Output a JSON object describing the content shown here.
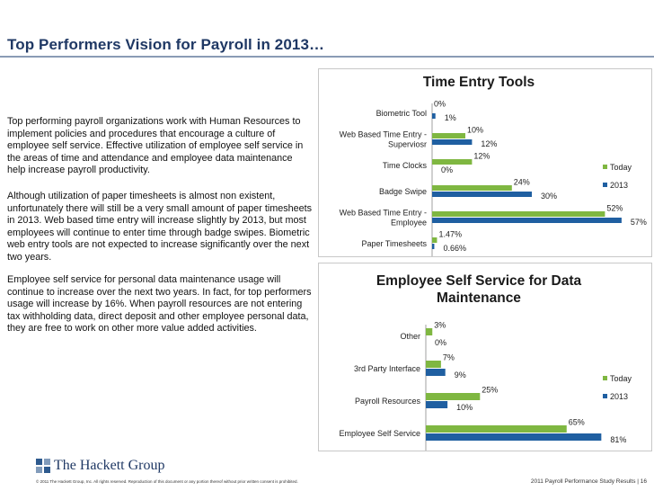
{
  "page": {
    "title": "Top Performers Vision for Payroll in 2013…",
    "paragraphs": [
      "Top performing payroll organizations work with Human Resources to implement policies and procedures that encourage a culture of employee self service.  Effective utilization of employee self service in the areas of time and attendance and employee data maintenance help increase payroll productivity.",
      "Although utilization of paper timesheets is almost non existent, unfortunately there will still be a very small amount of paper timesheets in 2013.  Web based time entry will increase slightly by 2013, but most employees will continue to enter time through badge swipes.  Biometric web entry tools are not expected to increase significantly over the next two years.",
      "Employee self service for personal data maintenance usage will continue to increase over the next two years.  In fact, for top performers usage will increase by 16%.  When payroll resources are not entering tax withholding data, direct deposit and other employee personal data, they are free to work on other more value added activities."
    ],
    "logo_text": "The Hackett Group",
    "copyright": "© 2011 The Hackett Group, Inc. All rights reserved. Reproduction of this document or any portion thereof without prior written consent is prohibited.",
    "page_info": "2011 Payroll Performance Study Results | 16"
  },
  "colors": {
    "today": "#7fb741",
    "y2013": "#1f5fa1",
    "title": "#1f3864"
  },
  "chart_data": [
    {
      "type": "bar",
      "orientation": "horizontal",
      "title": "Time Entry Tools",
      "categories": [
        [
          "Biometric Tool"
        ],
        [
          "Web Based Time Entry -",
          "Superviosr"
        ],
        [
          "Time Clocks"
        ],
        [
          "Badge Swipe"
        ],
        [
          "Web Based Time Entry -",
          "Employee"
        ],
        [
          "Paper Timesheets"
        ]
      ],
      "series": [
        {
          "name": "Today",
          "values": [
            0,
            10,
            12,
            24,
            52,
            1.47
          ],
          "labels": [
            "0%",
            "10%",
            "12%",
            "24%",
            "52%",
            "1.47%"
          ]
        },
        {
          "name": "2013",
          "values": [
            1,
            12,
            0,
            30,
            57,
            0.66
          ],
          "labels": [
            "1%",
            "12%",
            "0%",
            "30%",
            "57%",
            "0.66%"
          ]
        }
      ],
      "xlim": [
        0,
        60
      ],
      "legend": "right"
    },
    {
      "type": "bar",
      "orientation": "horizontal",
      "title": [
        "Employee Self  Service for Data",
        "Maintenance"
      ],
      "categories": [
        [
          "Other"
        ],
        [
          "3rd Party Interface"
        ],
        [
          "Payroll Resources"
        ],
        [
          "Employee Self Service"
        ]
      ],
      "series": [
        {
          "name": "Today",
          "values": [
            3,
            7,
            25,
            65
          ],
          "labels": [
            "3%",
            "7%",
            "25%",
            "65%"
          ]
        },
        {
          "name": "2013",
          "values": [
            0,
            9,
            10,
            81
          ],
          "labels": [
            "0%",
            "9%",
            "10%",
            "81%"
          ]
        }
      ],
      "xlim": [
        0,
        85
      ],
      "legend": "right"
    }
  ]
}
